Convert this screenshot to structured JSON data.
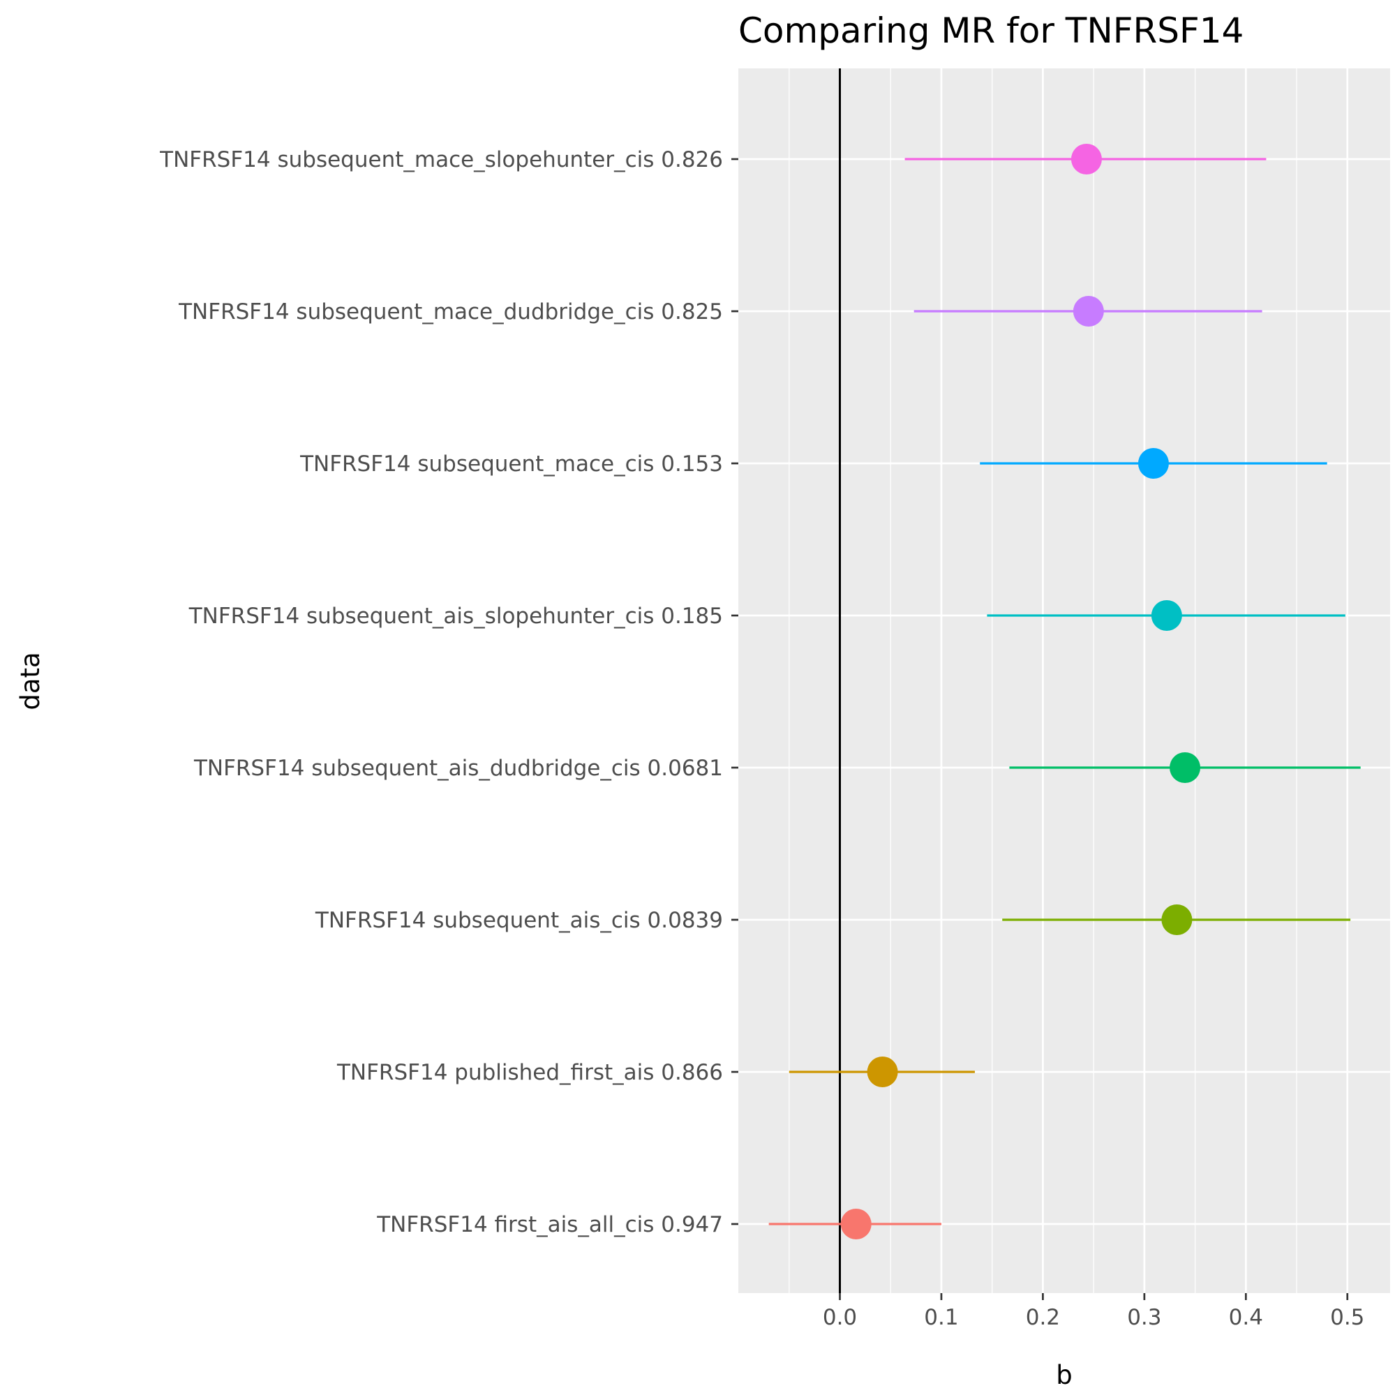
{
  "chart_data": {
    "type": "scatter",
    "title": "Comparing MR for TNFRSF14",
    "xlabel": "b",
    "ylabel": "data",
    "xlim": [
      -0.1,
      0.54
    ],
    "x_ticks": [
      0.0,
      0.1,
      0.2,
      0.3,
      0.4,
      0.5
    ],
    "x_tick_labels": [
      "0.0",
      "0.1",
      "0.2",
      "0.3",
      "0.4",
      "0.5"
    ],
    "reference_line_x": 0,
    "grid": true,
    "legend": "none",
    "panel_background": "#ebebeb",
    "rows": [
      {
        "label": "TNFRSF14 subsequent_mace_slopehunter_cis 0.826",
        "b": 0.243,
        "lo": 0.064,
        "hi": 0.42,
        "color": "#F564E3"
      },
      {
        "label": "TNFRSF14 subsequent_mace_dudbridge_cis 0.825",
        "b": 0.245,
        "lo": 0.073,
        "hi": 0.416,
        "color": "#C77CFF"
      },
      {
        "label": "TNFRSF14 subsequent_mace_cis 0.153",
        "b": 0.309,
        "lo": 0.138,
        "hi": 0.48,
        "color": "#00A9FF"
      },
      {
        "label": "TNFRSF14 subsequent_ais_slopehunter_cis 0.185",
        "b": 0.322,
        "lo": 0.145,
        "hi": 0.498,
        "color": "#00BFC4"
      },
      {
        "label": "TNFRSF14 subsequent_ais_dudbridge_cis 0.0681",
        "b": 0.34,
        "lo": 0.167,
        "hi": 0.513,
        "color": "#00BE67"
      },
      {
        "label": "TNFRSF14 subsequent_ais_cis 0.0839",
        "b": 0.332,
        "lo": 0.16,
        "hi": 0.503,
        "color": "#7CAE00"
      },
      {
        "label": "TNFRSF14 published_first_ais 0.866",
        "b": 0.042,
        "lo": -0.05,
        "hi": 0.133,
        "color": "#CD9600"
      },
      {
        "label": "TNFRSF14 first_ais_all_cis 0.947",
        "b": 0.016,
        "lo": -0.07,
        "hi": 0.1,
        "color": "#F8766D"
      }
    ]
  }
}
